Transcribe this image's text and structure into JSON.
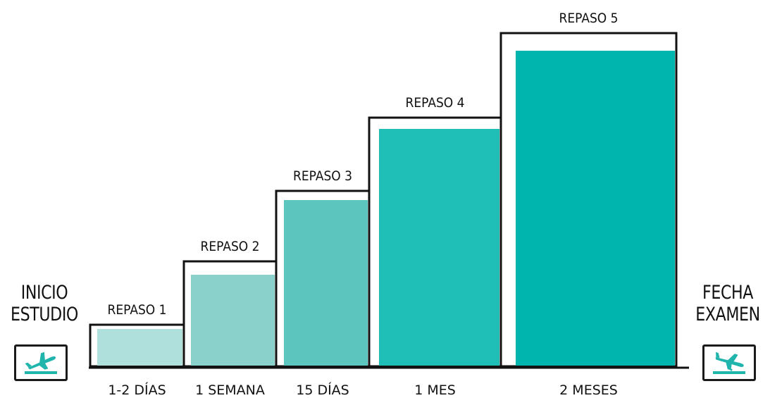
{
  "start": {
    "line1": "INICIO",
    "line2": "ESTUDIO",
    "icon": "airplane-takeoff-icon"
  },
  "end": {
    "line1": "FECHA",
    "line2": "EXAMEN",
    "icon": "airplane-landing-icon"
  },
  "steps": [
    {
      "label": "REPASO 1",
      "interval": "1-2 DÍAS",
      "color": "#b0e0dc"
    },
    {
      "label": "REPASO 2",
      "interval": "1 SEMANA",
      "color": "#8ad1cb"
    },
    {
      "label": "REPASO 3",
      "interval": "15 DÍAS",
      "color": "#5cc6be"
    },
    {
      "label": "REPASO 4",
      "interval": "1 MES",
      "color": "#1fbfb7"
    },
    {
      "label": "REPASO 5",
      "interval": "2 MESES",
      "color": "#00b5ae"
    }
  ],
  "colors": {
    "accent": "#1fb5ad",
    "outline": "#111111"
  }
}
